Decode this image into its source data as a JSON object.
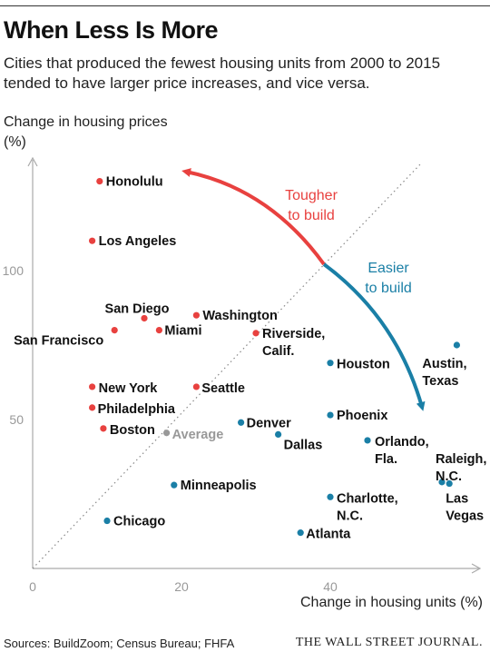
{
  "header": {
    "title": "When Less Is More",
    "subtitle": "Cities that produced the fewest housing units from 2000 to 2015 tended to have larger price increases, and vice versa."
  },
  "footer": {
    "sources": "Sources: BuildZoom; Census Bureau; FHFA",
    "brand": "THE WALL STREET JOURNAL."
  },
  "chart_data": {
    "type": "scatter",
    "xlabel": "Change in housing units (%)",
    "ylabel": "Change in housing prices (%)",
    "xlim": [
      0,
      58
    ],
    "ylim": [
      0,
      140
    ],
    "x_ticks": [
      0,
      20,
      40
    ],
    "y_ticks": [
      50,
      100
    ],
    "colors": {
      "fewer_units": "#e8413f",
      "more_units": "#1a7fa6",
      "average": "#999999",
      "axis": "#aaaaaa"
    },
    "annotations": {
      "tougher": [
        "Tougher",
        "to build"
      ],
      "easier": [
        "Easier",
        "to build"
      ]
    },
    "points": [
      {
        "label": [
          "Honolulu"
        ],
        "x": 9,
        "y": 130,
        "group": "fewer_units"
      },
      {
        "label": [
          "Los Angeles"
        ],
        "x": 8,
        "y": 110,
        "group": "fewer_units"
      },
      {
        "label": [
          "San Diego"
        ],
        "x": 15,
        "y": 84,
        "group": "fewer_units"
      },
      {
        "label": [
          "Washington"
        ],
        "x": 22,
        "y": 85,
        "group": "fewer_units"
      },
      {
        "label": [
          "San Francisco"
        ],
        "x": 11,
        "y": 80,
        "group": "fewer_units"
      },
      {
        "label": [
          "Miami"
        ],
        "x": 17,
        "y": 80,
        "group": "fewer_units"
      },
      {
        "label": [
          "Riverside,",
          "Calif."
        ],
        "x": 30,
        "y": 79,
        "group": "fewer_units"
      },
      {
        "label": [
          "New York"
        ],
        "x": 8,
        "y": 61,
        "group": "fewer_units"
      },
      {
        "label": [
          "Seattle"
        ],
        "x": 22,
        "y": 61,
        "group": "fewer_units"
      },
      {
        "label": [
          "Philadelphia"
        ],
        "x": 8,
        "y": 54,
        "group": "fewer_units"
      },
      {
        "label": [
          "Boston"
        ],
        "x": 9.5,
        "y": 47,
        "group": "fewer_units"
      },
      {
        "label": [
          "Average"
        ],
        "x": 18,
        "y": 45.5,
        "group": "average"
      },
      {
        "label": [
          "Denver"
        ],
        "x": 28,
        "y": 49,
        "group": "more_units"
      },
      {
        "label": [
          "Dallas"
        ],
        "x": 33,
        "y": 45,
        "group": "more_units"
      },
      {
        "label": [
          "Houston"
        ],
        "x": 40,
        "y": 69,
        "group": "more_units"
      },
      {
        "label": [
          "Phoenix"
        ],
        "x": 40,
        "y": 51.5,
        "group": "more_units"
      },
      {
        "label": [
          "Orlando,",
          "Fla."
        ],
        "x": 45,
        "y": 43,
        "group": "more_units"
      },
      {
        "label": [
          "Austin,",
          "Texas"
        ],
        "x": 57,
        "y": 75,
        "group": "more_units"
      },
      {
        "label": [
          "Raleigh,",
          "N.C."
        ],
        "x": 55,
        "y": 29,
        "group": "more_units"
      },
      {
        "label": [
          "Las",
          "Vegas"
        ],
        "x": 56,
        "y": 28.5,
        "group": "more_units"
      },
      {
        "label": [
          "Minneapolis"
        ],
        "x": 19,
        "y": 28,
        "group": "more_units"
      },
      {
        "label": [
          "Charlotte,",
          "N.C."
        ],
        "x": 40,
        "y": 24,
        "group": "more_units"
      },
      {
        "label": [
          "Chicago"
        ],
        "x": 10,
        "y": 16,
        "group": "more_units"
      },
      {
        "label": [
          "Atlanta"
        ],
        "x": 36,
        "y": 12,
        "group": "more_units"
      }
    ]
  }
}
